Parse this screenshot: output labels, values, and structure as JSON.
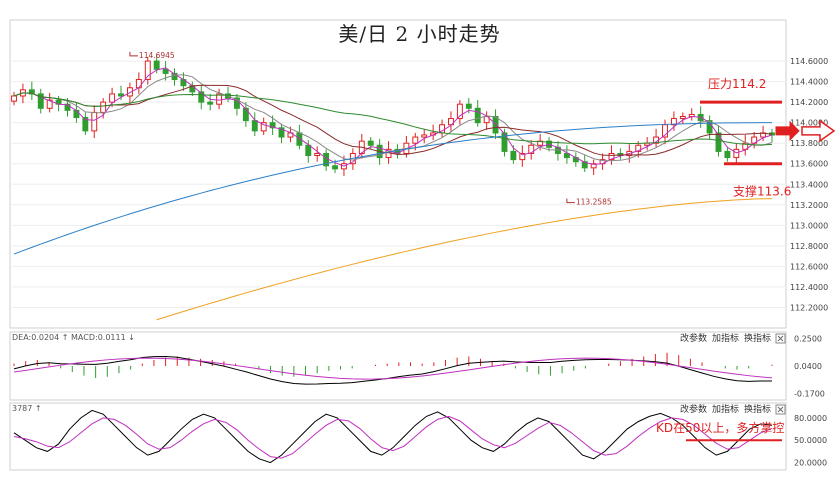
{
  "chart_data": {
    "type": "candlestick",
    "title": "美/日 2 小时走势",
    "main": {
      "ylim": [
        112.0,
        115.0
      ],
      "ticks": [
        "114.6000",
        "114.4000",
        "114.2000",
        "114.0000",
        "113.8000",
        "113.6000",
        "113.4000",
        "113.2000",
        "113.0000",
        "112.8000",
        "112.6000",
        "112.4000",
        "112.2000"
      ],
      "tick_values": [
        114.6,
        114.4,
        114.2,
        114.0,
        113.8,
        113.6,
        113.4,
        113.2,
        113.0,
        112.8,
        112.6,
        112.4,
        112.2
      ],
      "candles_close": [
        114.26,
        114.32,
        114.28,
        114.14,
        114.22,
        114.18,
        114.12,
        114.05,
        113.92,
        114.1,
        114.2,
        114.28,
        114.26,
        114.34,
        114.42,
        114.6,
        114.52,
        114.48,
        114.42,
        114.36,
        114.3,
        114.2,
        114.18,
        114.28,
        114.24,
        114.14,
        114.02,
        113.92,
        114.0,
        113.95,
        113.86,
        113.9,
        113.78,
        113.68,
        113.7,
        113.58,
        113.55,
        113.6,
        113.7,
        113.82,
        113.78,
        113.66,
        113.74,
        113.7,
        113.8,
        113.86,
        113.88,
        113.9,
        113.98,
        114.04,
        114.18,
        114.14,
        114.0,
        114.06,
        113.9,
        113.72,
        113.64,
        113.7,
        113.78,
        113.82,
        113.76,
        113.7,
        113.66,
        113.62,
        113.56,
        113.6,
        113.64,
        113.7,
        113.68,
        113.72,
        113.78,
        113.8,
        113.86,
        113.98,
        114.04,
        114.06,
        114.08,
        114.02,
        113.9,
        113.72,
        113.66,
        113.74,
        113.8,
        113.86,
        113.9,
        113.88
      ],
      "high_label": "114.6945",
      "low_label": "113.2585",
      "resistance": {
        "label": "压力114.2",
        "value": 114.2
      },
      "support": {
        "label": "支撑113.6",
        "value": 113.6
      },
      "colors": {
        "up": "#e02020",
        "down": "#2f9e2f",
        "ma_blue": "#2a7fc8",
        "ma_orange": "#f0a020",
        "ma_green": "#2e8b2e",
        "ma_darkred": "#8b2a2a",
        "ma_purple": "#c030c0",
        "ma_gray": "#888888"
      }
    },
    "macd_panel": {
      "header": "DEA:0.0204 ↑ MACD:0.0111 ↓",
      "ticks": [
        "0.2500",
        "0.0400",
        "-0.1700"
      ],
      "tick_values": [
        0.25,
        0.04,
        -0.17
      ],
      "ylim": [
        -0.22,
        0.3
      ],
      "hist": [
        0.02,
        0.04,
        0.05,
        0.03,
        -0.02,
        -0.05,
        -0.08,
        -0.1,
        -0.09,
        -0.06,
        -0.03,
        0.02,
        0.05,
        0.07,
        0.08,
        0.07,
        0.06,
        0.05,
        0.04,
        0.02,
        0.0,
        -0.03,
        -0.06,
        -0.08,
        -0.09,
        -0.08,
        -0.06,
        -0.04,
        -0.03,
        -0.02,
        0.0,
        0.01,
        0.02,
        0.03,
        0.03,
        0.02,
        0.03,
        0.05,
        0.07,
        0.08,
        0.06,
        0.04,
        0.02,
        -0.02,
        -0.05,
        -0.07,
        -0.08,
        -0.06,
        -0.04,
        -0.02,
        0.0,
        0.02,
        0.04,
        0.06,
        0.08,
        0.1,
        0.11,
        0.09,
        0.06,
        0.03,
        0.0,
        -0.02,
        -0.03,
        -0.02,
        0.0,
        0.01
      ],
      "buttons": [
        "改参数",
        "加指标",
        "换指标"
      ]
    },
    "kd_panel": {
      "header": "3787 ↑",
      "ticks": [
        "80.0000",
        "50.0000",
        "20.0000"
      ],
      "tick_values": [
        80,
        50,
        20
      ],
      "ylim": [
        10,
        100
      ],
      "k": [
        60,
        50,
        40,
        35,
        45,
        65,
        80,
        90,
        85,
        70,
        55,
        40,
        30,
        35,
        50,
        65,
        78,
        85,
        80,
        65,
        50,
        35,
        25,
        20,
        30,
        45,
        60,
        75,
        85,
        80,
        65,
        50,
        35,
        30,
        40,
        55,
        70,
        82,
        88,
        80,
        65,
        50,
        40,
        35,
        45,
        60,
        72,
        80,
        75,
        60,
        45,
        30,
        25,
        35,
        50,
        65,
        75,
        82,
        86,
        80,
        70,
        55,
        40,
        30,
        35,
        50,
        65,
        72,
        70
      ],
      "d": [
        55,
        52,
        48,
        42,
        40,
        48,
        60,
        72,
        80,
        78,
        70,
        58,
        45,
        38,
        40,
        50,
        62,
        72,
        78,
        74,
        64,
        50,
        38,
        28,
        26,
        32,
        45,
        58,
        70,
        78,
        76,
        66,
        52,
        40,
        36,
        42,
        55,
        68,
        78,
        82,
        76,
        64,
        52,
        44,
        40,
        46,
        56,
        66,
        74,
        70,
        60,
        48,
        36,
        30,
        32,
        42,
        55,
        66,
        75,
        80,
        78,
        70,
        58,
        46,
        38,
        40,
        50,
        60,
        66
      ],
      "annotation": "KD在50以上，多方掌控",
      "buttons": [
        "改参数",
        "加指标",
        "换指标"
      ]
    }
  }
}
